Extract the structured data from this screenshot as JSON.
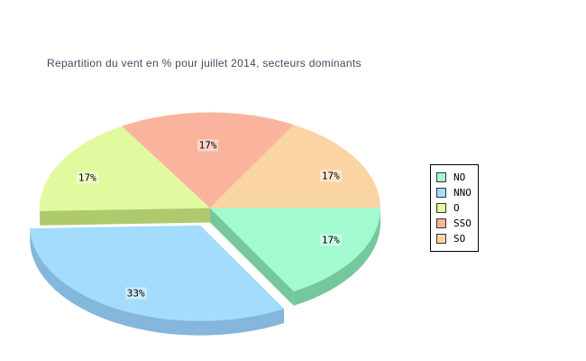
{
  "page": {
    "background": "#FFFFFF",
    "title_color": "#3E4B61"
  },
  "chart_data": {
    "type": "pie",
    "style": "pie3d-exploded",
    "title": "Repartition du vent en % pour juillet 2014, secteurs dominants",
    "labels": [
      "NO",
      "NNO",
      "O",
      "SSO",
      "SO"
    ],
    "values": [
      17,
      33,
      17,
      17,
      17
    ],
    "unit": "%",
    "slice_labels": [
      "17%",
      "33%",
      "17%",
      "17%",
      "17%"
    ],
    "colors": [
      "#A2FBD0",
      "#A3DCFC",
      "#E1FAA0",
      "#FAB49D",
      "#FBD4A4"
    ],
    "side_colors": [
      "#75C89B",
      "#84B7DB",
      "#AFCA6D",
      "#C98F7C",
      "#C9A982"
    ],
    "exploded_slices": [
      "NNO"
    ],
    "legend_position": "right",
    "label_text_color": "#000000",
    "legend_border_color": "#000000"
  }
}
